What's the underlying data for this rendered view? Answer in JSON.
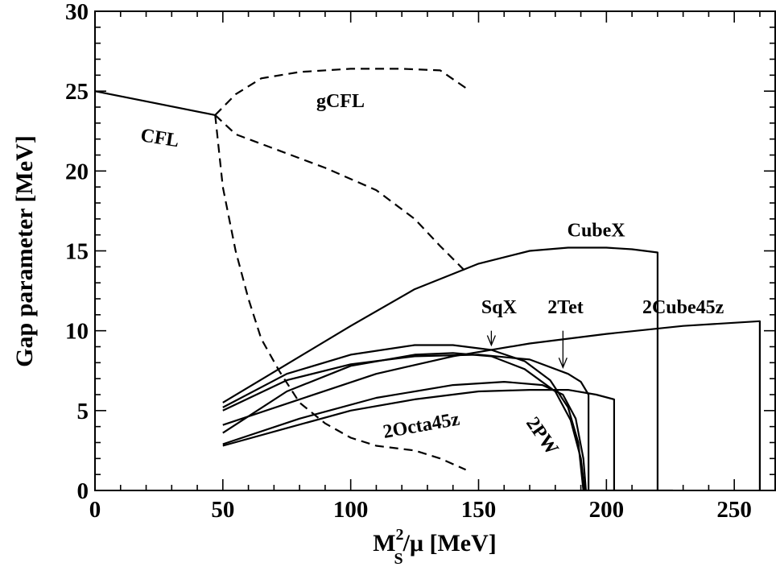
{
  "chart_data": {
    "type": "line",
    "xlabel": {
      "main": "M",
      "sup": "2",
      "sub": "S",
      "rest": "/μ [MeV]"
    },
    "ylabel": "Gap parameter [MeV]",
    "xlim": [
      0,
      266
    ],
    "ylim": [
      0,
      30
    ],
    "xticks": [
      0,
      50,
      100,
      150,
      200,
      250
    ],
    "yticks": [
      0,
      5,
      10,
      15,
      20,
      25,
      30
    ],
    "grid": false,
    "legend": "none",
    "series": [
      {
        "name": "CFL",
        "style": "solid",
        "points": [
          [
            0,
            25
          ],
          [
            47,
            23.5
          ]
        ]
      },
      {
        "name": "gCFL",
        "style": "dashed",
        "points": [
          [
            47,
            23.5
          ],
          [
            55,
            24.8
          ],
          [
            65,
            25.8
          ],
          [
            80,
            26.2
          ],
          [
            100,
            26.4
          ],
          [
            120,
            26.4
          ],
          [
            135,
            26.3
          ],
          [
            145,
            25.2
          ]
        ]
      },
      {
        "name": "",
        "style": "dashed",
        "points": [
          [
            47,
            23.5
          ],
          [
            55,
            22.3
          ],
          [
            70,
            21.4
          ],
          [
            90,
            20.2
          ],
          [
            110,
            18.8
          ],
          [
            125,
            17
          ],
          [
            135,
            15.3
          ],
          [
            145,
            13.7
          ]
        ]
      },
      {
        "name": "",
        "style": "dashed",
        "points": [
          [
            47,
            23.5
          ],
          [
            50,
            19
          ],
          [
            55,
            15
          ],
          [
            60,
            12
          ],
          [
            65,
            9.5
          ],
          [
            72,
            7.5
          ],
          [
            80,
            5.5
          ],
          [
            90,
            4.2
          ],
          [
            100,
            3.3
          ],
          [
            110,
            2.8
          ],
          [
            125,
            2.5
          ],
          [
            135,
            2
          ],
          [
            145,
            1.3
          ]
        ]
      },
      {
        "name": "CubeX",
        "style": "solid",
        "points": [
          [
            50,
            5.5
          ],
          [
            75,
            7.9
          ],
          [
            100,
            10.3
          ],
          [
            125,
            12.6
          ],
          [
            150,
            14.2
          ],
          [
            170,
            15
          ],
          [
            185,
            15.2
          ],
          [
            200,
            15.2
          ],
          [
            210,
            15.1
          ],
          [
            220,
            14.9
          ],
          [
            220,
            0
          ]
        ]
      },
      {
        "name": "2Cube45z",
        "style": "solid",
        "points": [
          [
            50,
            4.1
          ],
          [
            80,
            5.7
          ],
          [
            110,
            7.3
          ],
          [
            140,
            8.4
          ],
          [
            170,
            9.2
          ],
          [
            200,
            9.8
          ],
          [
            230,
            10.3
          ],
          [
            260,
            10.6
          ],
          [
            260,
            0
          ]
        ]
      },
      {
        "name": "SqX",
        "style": "solid",
        "points": [
          [
            50,
            5.2
          ],
          [
            75,
            7.3
          ],
          [
            100,
            8.5
          ],
          [
            125,
            9.1
          ],
          [
            140,
            9.1
          ],
          [
            155,
            8.8
          ],
          [
            168,
            8.1
          ],
          [
            178,
            6.9
          ],
          [
            185,
            5.2
          ],
          [
            189,
            3
          ],
          [
            191,
            0
          ]
        ]
      },
      {
        "name": "2Tet",
        "style": "solid",
        "points": [
          [
            50,
            5
          ],
          [
            75,
            6.9
          ],
          [
            100,
            7.9
          ],
          [
            125,
            8.4
          ],
          [
            150,
            8.5
          ],
          [
            170,
            8.2
          ],
          [
            185,
            7.3
          ],
          [
            190,
            6.8
          ],
          [
            193,
            6
          ],
          [
            193,
            0
          ]
        ]
      },
      {
        "name": "2PW",
        "style": "solid",
        "points": [
          [
            50,
            3.6
          ],
          [
            75,
            6.2
          ],
          [
            100,
            7.8
          ],
          [
            125,
            8.5
          ],
          [
            140,
            8.6
          ],
          [
            155,
            8.4
          ],
          [
            168,
            7.6
          ],
          [
            180,
            6.2
          ],
          [
            186,
            4.4
          ],
          [
            190,
            2
          ],
          [
            191.5,
            0
          ]
        ]
      },
      {
        "name": "2Octa45z",
        "style": "solid",
        "points": [
          [
            50,
            2.8
          ],
          [
            75,
            3.9
          ],
          [
            100,
            5
          ],
          [
            125,
            5.7
          ],
          [
            150,
            6.2
          ],
          [
            170,
            6.3
          ],
          [
            185,
            6.3
          ],
          [
            196,
            6
          ],
          [
            203,
            5.7
          ],
          [
            203,
            0
          ]
        ]
      },
      {
        "name": "",
        "style": "solid",
        "points": [
          [
            50,
            2.9
          ],
          [
            80,
            4.5
          ],
          [
            110,
            5.8
          ],
          [
            140,
            6.6
          ],
          [
            160,
            6.8
          ],
          [
            175,
            6.6
          ],
          [
            183,
            6
          ],
          [
            188,
            4.5
          ],
          [
            191,
            2
          ],
          [
            192,
            0
          ],
          [
            226,
            0
          ]
        ]
      }
    ],
    "labels": [
      {
        "text": "CFL",
        "x": 25,
        "y": 21.7,
        "rotate": 9
      },
      {
        "text": "gCFL",
        "x": 96,
        "y": 24,
        "rotate": 0
      },
      {
        "text": "CubeX",
        "x": 196,
        "y": 15.9,
        "rotate": 0
      },
      {
        "text": "2Cube45z",
        "x": 230,
        "y": 11.1,
        "rotate": 0
      },
      {
        "text": "SqX",
        "x": 158,
        "y": 11.1,
        "rotate": 0
      },
      {
        "text": "2Tet",
        "x": 184,
        "y": 11.1,
        "rotate": 0
      },
      {
        "text": "2Octa45z",
        "x": 128,
        "y": 3.7,
        "rotate": -10
      },
      {
        "text": "2PW",
        "x": 173,
        "y": 3.2,
        "rotate": 55
      }
    ],
    "arrows": [
      {
        "from": [
          155,
          10.0
        ],
        "to": [
          155,
          9.1
        ]
      },
      {
        "from": [
          183,
          10.0
        ],
        "to": [
          183,
          7.7
        ]
      }
    ]
  }
}
